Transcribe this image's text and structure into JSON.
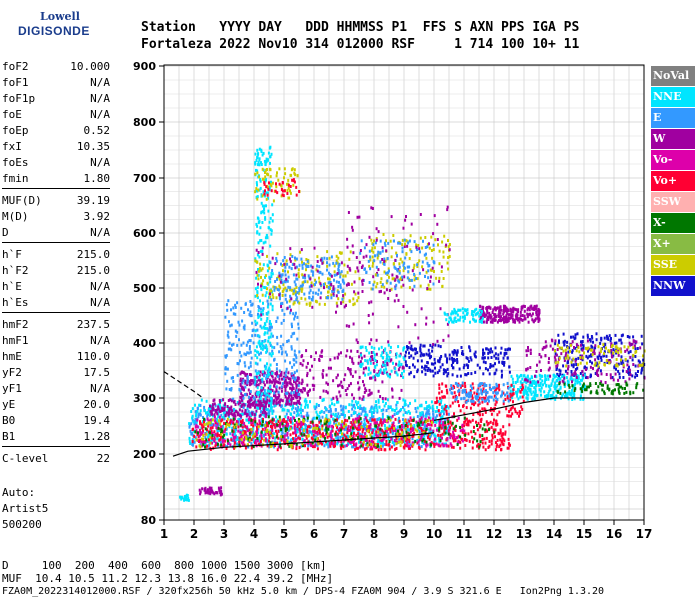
{
  "logo": {
    "line1": "Lowell",
    "line2": "DIGISONDE"
  },
  "header": {
    "row1": "Station   YYYY DAY   DDD HHMMSS P1  FFS S AXN PPS IGA PS",
    "row2": "Fortaleza 2022 Nov10 314 012000 RSF     1 714 100 10+ 11"
  },
  "params": [
    {
      "k": "foF2",
      "v": "10.000"
    },
    {
      "k": "foF1",
      "v": "N/A"
    },
    {
      "k": "foF1p",
      "v": "N/A"
    },
    {
      "k": "foE",
      "v": "N/A"
    },
    {
      "k": "foEp",
      "v": "0.52"
    },
    {
      "k": "fxI",
      "v": "10.35"
    },
    {
      "k": "foEs",
      "v": "N/A"
    },
    {
      "k": "fmin",
      "v": "1.80"
    },
    {
      "k": "MUF(D)",
      "v": "39.19"
    },
    {
      "k": "M(D)",
      "v": "3.92"
    },
    {
      "k": "D",
      "v": "N/A"
    },
    {
      "k": "h`F",
      "v": "215.0"
    },
    {
      "k": "h`F2",
      "v": "215.0"
    },
    {
      "k": "h`E",
      "v": "N/A"
    },
    {
      "k": "h`Es",
      "v": "N/A"
    },
    {
      "k": "hmF2",
      "v": "237.5"
    },
    {
      "k": "hmF1",
      "v": "N/A"
    },
    {
      "k": "hmE",
      "v": "110.0"
    },
    {
      "k": "yF2",
      "v": "17.5"
    },
    {
      "k": "yF1",
      "v": "N/A"
    },
    {
      "k": "yE",
      "v": "20.0"
    },
    {
      "k": "B0",
      "v": "19.4"
    },
    {
      "k": "B1",
      "v": "1.28"
    },
    {
      "k": "C-level",
      "v": "22"
    }
  ],
  "scaling": {
    "auto": "Auto:",
    "artist": "Artist5",
    "code": "500200"
  },
  "legend": [
    {
      "label": "NoVal",
      "color": "#808080"
    },
    {
      "label": "NNE",
      "color": "#00e5ff"
    },
    {
      "label": "E",
      "color": "#3399ff"
    },
    {
      "label": "W",
      "color": "#a000a0"
    },
    {
      "label": "Vo-",
      "color": "#dd00aa"
    },
    {
      "label": "Vo+",
      "color": "#ff0033"
    },
    {
      "label": "SSW",
      "color": "#ffb0b0"
    },
    {
      "label": "X-",
      "color": "#007700"
    },
    {
      "label": "X+",
      "color": "#88bb44"
    },
    {
      "label": "SSE",
      "color": "#cccc00"
    },
    {
      "label": "NNW",
      "color": "#1111cc"
    }
  ],
  "footer": {
    "d_row": "D     100  200  400  600  800 1000 1500 3000 [km]",
    "muf_row": "MUF  10.4 10.5 11.2 12.3 13.8 16.0 22.4 39.2 [MHz]",
    "file_row": "FZA0M_2022314012000.RSF / 320fx256h 50 kHz 5.0 km / DPS-4 FZA0M 904 / 3.9 S 321.6 E   Ion2Png 1.3.20"
  },
  "chart_data": {
    "type": "scatter",
    "xlim": [
      1,
      17
    ],
    "ylim": [
      80,
      900
    ],
    "x_ticks": [
      "1",
      "2",
      "3",
      "4",
      "5",
      "6",
      "7",
      "8",
      "9",
      "10",
      "11",
      "12",
      "13",
      "14",
      "15",
      "16",
      "17"
    ],
    "y_ticks": [
      "80",
      "200",
      "300",
      "400",
      "500",
      "600",
      "700",
      "800",
      "900"
    ],
    "grid": true,
    "clusters": [
      {
        "color": "#3399ff",
        "x": [
          1.8,
          10.5
        ],
        "y": [
          215,
          290
        ],
        "n": 650
      },
      {
        "color": "#00e5ff",
        "x": [
          1.8,
          10.5
        ],
        "y": [
          220,
          300
        ],
        "n": 550
      },
      {
        "color": "#ff0033",
        "x": [
          1.9,
          12.5
        ],
        "y": [
          210,
          265
        ],
        "n": 650
      },
      {
        "color": "#dd00aa",
        "x": [
          2.0,
          11.0
        ],
        "y": [
          215,
          270
        ],
        "n": 300
      },
      {
        "color": "#007700",
        "x": [
          2.0,
          12.0
        ],
        "y": [
          215,
          270
        ],
        "n": 160
      },
      {
        "color": "#cccc00",
        "x": [
          2.0,
          10.0
        ],
        "y": [
          215,
          265
        ],
        "n": 120
      },
      {
        "color": "#a000a0",
        "x": [
          3.5,
          5.5
        ],
        "y": [
          290,
          350
        ],
        "n": 300
      },
      {
        "color": "#3399ff",
        "x": [
          3.0,
          5.5
        ],
        "y": [
          300,
          480
        ],
        "n": 250
      },
      {
        "color": "#00e5ff",
        "x": [
          4.0,
          4.6
        ],
        "y": [
          280,
          760
        ],
        "n": 260
      },
      {
        "color": "#a000a0",
        "x": [
          2.5,
          4.5
        ],
        "y": [
          270,
          300
        ],
        "n": 120
      },
      {
        "color": "#cccc00",
        "x": [
          4.0,
          7.5
        ],
        "y": [
          470,
          570
        ],
        "n": 160
      },
      {
        "color": "#3399ff",
        "x": [
          4.5,
          7.0
        ],
        "y": [
          480,
          560
        ],
        "n": 160
      },
      {
        "color": "#a000a0",
        "x": [
          4.0,
          9.0
        ],
        "y": [
          450,
          580
        ],
        "n": 90
      },
      {
        "color": "#cccc00",
        "x": [
          4.0,
          5.5
        ],
        "y": [
          660,
          720
        ],
        "n": 60
      },
      {
        "color": "#ff0033",
        "x": [
          4.0,
          5.5
        ],
        "y": [
          670,
          700
        ],
        "n": 30
      },
      {
        "color": "#cccc00",
        "x": [
          7.8,
          10.5
        ],
        "y": [
          500,
          600
        ],
        "n": 130
      },
      {
        "color": "#3399ff",
        "x": [
          7.5,
          10.0
        ],
        "y": [
          500,
          590
        ],
        "n": 100
      },
      {
        "color": "#a000a0",
        "x": [
          7.0,
          10.5
        ],
        "y": [
          400,
          650
        ],
        "n": 90
      },
      {
        "color": "#a000a0",
        "x": [
          11.5,
          13.5
        ],
        "y": [
          440,
          470
        ],
        "n": 220
      },
      {
        "color": "#00e5ff",
        "x": [
          10.3,
          11.6
        ],
        "y": [
          440,
          465
        ],
        "n": 70
      },
      {
        "color": "#a000a0",
        "x": [
          5.5,
          9.0
        ],
        "y": [
          300,
          390
        ],
        "n": 180
      },
      {
        "color": "#00e5ff",
        "x": [
          7.5,
          9.0
        ],
        "y": [
          340,
          400
        ],
        "n": 90
      },
      {
        "color": "#1111cc",
        "x": [
          9.0,
          12.5
        ],
        "y": [
          340,
          400
        ],
        "n": 220
      },
      {
        "color": "#1111cc",
        "x": [
          14.0,
          17.0
        ],
        "y": [
          340,
          420
        ],
        "n": 220
      },
      {
        "color": "#00e5ff",
        "x": [
          12.5,
          15.0
        ],
        "y": [
          300,
          345
        ],
        "n": 250
      },
      {
        "color": "#ff0033",
        "x": [
          10.0,
          13.0
        ],
        "y": [
          270,
          330
        ],
        "n": 160
      },
      {
        "color": "#a000a0",
        "x": [
          13.0,
          17.0
        ],
        "y": [
          330,
          410
        ],
        "n": 140
      },
      {
        "color": "#cccc00",
        "x": [
          14.0,
          17.0
        ],
        "y": [
          360,
          400
        ],
        "n": 80
      },
      {
        "color": "#007700",
        "x": [
          14.0,
          17.0
        ],
        "y": [
          310,
          330
        ],
        "n": 70
      },
      {
        "color": "#3399ff",
        "x": [
          10.5,
          12.5
        ],
        "y": [
          295,
          330
        ],
        "n": 100
      },
      {
        "color": "#a000a0",
        "x": [
          2.1,
          2.9
        ],
        "y": [
          128,
          142
        ],
        "n": 40
      },
      {
        "color": "#00e5ff",
        "x": [
          1.5,
          1.8
        ],
        "y": [
          118,
          128
        ],
        "n": 20
      }
    ],
    "traces": [
      {
        "name": "x-trace",
        "color": "#000000",
        "dash": false,
        "x": [
          1.3,
          1.8,
          3.0,
          5.0,
          7.0,
          9.0,
          10.0
        ],
        "y": [
          196,
          205,
          212,
          218,
          225,
          232,
          238
        ]
      },
      {
        "name": "o-trace",
        "color": "#000000",
        "dash": false,
        "x": [
          10.0,
          10.5,
          11.0,
          12.0,
          13.0,
          14.0,
          17.0
        ],
        "y": [
          260,
          265,
          270,
          280,
          292,
          300,
          300
        ]
      },
      {
        "name": "dashed-trace",
        "color": "#000000",
        "dash": true,
        "x": [
          1.0,
          1.5,
          2.0,
          2.3
        ],
        "y": [
          348,
          330,
          312,
          300
        ]
      }
    ]
  }
}
